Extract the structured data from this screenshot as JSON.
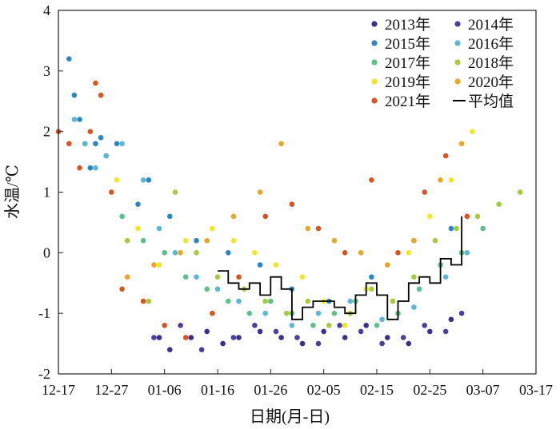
{
  "chart_data": {
    "type": "scatter",
    "title": "",
    "xlabel": "日期(月-日)",
    "ylabel": "水温/℃",
    "xlim": [
      "12-17",
      "03-17"
    ],
    "ylim": [
      -2,
      4
    ],
    "x_ticks": [
      "12-17",
      "12-27",
      "01-06",
      "01-16",
      "01-26",
      "02-05",
      "02-15",
      "02-25",
      "03-07",
      "03-17"
    ],
    "y_ticks": [
      "-2",
      "-1",
      "0",
      "1",
      "2",
      "3",
      "4"
    ],
    "grid": false,
    "legend_position": "top-right",
    "series": [
      {
        "name": "2013年",
        "color": "#3a2f8e",
        "x": [
          "01-05",
          "01-07",
          "01-11",
          "01-14",
          "01-17",
          "01-20",
          "01-24",
          "01-28",
          "02-01",
          "02-05",
          "02-09",
          "02-13",
          "02-17",
          "02-21",
          "02-25",
          "03-01"
        ],
        "y": [
          -1.4,
          -1.6,
          -1.4,
          -1.3,
          -1.5,
          -1.4,
          -1.3,
          -1.4,
          -1.5,
          -1.3,
          -1.4,
          -1.2,
          -1.4,
          -1.5,
          -1.3,
          -1.1
        ]
      },
      {
        "name": "2014年",
        "color": "#4a3f9e",
        "x": [
          "01-04",
          "01-09",
          "01-13",
          "01-19",
          "01-23",
          "01-27",
          "01-31",
          "02-04",
          "02-08",
          "02-12",
          "02-16",
          "02-20",
          "02-24",
          "02-28",
          "03-03"
        ],
        "y": [
          -1.4,
          -1.2,
          -1.6,
          -1.4,
          -1.2,
          -1.3,
          -1.4,
          -1.5,
          -1.2,
          -1.3,
          -1.5,
          -1.4,
          -1.2,
          -1.3,
          -1.0
        ]
      },
      {
        "name": "2015年",
        "color": "#2d86c4",
        "x": [
          "12-19",
          "12-20",
          "12-21",
          "12-22",
          "12-23",
          "12-24",
          "12-25",
          "12-26",
          "12-28",
          "01-01",
          "01-03",
          "01-07",
          "01-12",
          "01-18",
          "01-24",
          "01-30",
          "02-06",
          "02-14",
          "02-22",
          "03-01"
        ],
        "y": [
          3.2,
          2.6,
          2.2,
          1.8,
          1.4,
          1.8,
          1.9,
          1.6,
          1.8,
          0.8,
          1.2,
          0.6,
          0.2,
          0.0,
          -0.2,
          -0.6,
          -0.8,
          -0.4,
          0.2,
          0.4
        ]
      },
      {
        "name": "2016年",
        "color": "#5ab8d6",
        "x": [
          "12-20",
          "12-22",
          "12-24",
          "12-26",
          "12-29",
          "01-02",
          "01-05",
          "01-08",
          "01-12",
          "01-16",
          "01-20",
          "01-25",
          "01-30",
          "02-04",
          "02-10",
          "02-16",
          "02-22",
          "02-28",
          "03-04"
        ],
        "y": [
          2.2,
          1.8,
          1.4,
          1.6,
          1.8,
          1.2,
          0.4,
          0.0,
          -0.4,
          -0.6,
          -0.8,
          -1.0,
          -1.2,
          -1.0,
          -0.8,
          -1.1,
          -0.9,
          -0.4,
          0.0
        ]
      },
      {
        "name": "2017年",
        "color": "#5cc08a",
        "x": [
          "12-29",
          "01-02",
          "01-06",
          "01-10",
          "01-14",
          "01-18",
          "01-22",
          "01-26",
          "01-30",
          "02-03",
          "02-07",
          "02-11",
          "02-15",
          "02-19",
          "02-23",
          "02-27",
          "03-03",
          "03-07"
        ],
        "y": [
          0.6,
          0.2,
          0.0,
          -0.4,
          -0.6,
          -0.8,
          -1.0,
          -0.8,
          -1.0,
          -1.2,
          -1.0,
          -0.8,
          -1.2,
          -1.0,
          -0.6,
          -0.2,
          0.0,
          0.4
        ]
      },
      {
        "name": "2018年",
        "color": "#a4cc3c",
        "x": [
          "12-30",
          "01-03",
          "01-08",
          "01-12",
          "01-16",
          "01-21",
          "01-25",
          "01-29",
          "02-02",
          "02-06",
          "02-10",
          "02-14",
          "02-18",
          "02-22",
          "02-26",
          "03-02",
          "03-06",
          "03-10",
          "03-14"
        ],
        "y": [
          0.2,
          -0.8,
          1.0,
          0.0,
          -0.4,
          -0.6,
          -0.8,
          -1.0,
          -0.8,
          -1.2,
          -1.0,
          -0.6,
          -0.8,
          -0.4,
          0.2,
          0.4,
          0.6,
          0.8,
          1.0
        ]
      },
      {
        "name": "2019年",
        "color": "#f2e627",
        "x": [
          "12-28",
          "01-01",
          "01-05",
          "01-10",
          "01-15",
          "01-19",
          "01-23",
          "01-27",
          "02-01",
          "02-05",
          "02-09",
          "02-13",
          "02-17",
          "02-21",
          "02-25",
          "03-01",
          "03-05"
        ],
        "y": [
          1.2,
          0.4,
          -0.2,
          0.2,
          0.4,
          0.2,
          0.0,
          -0.2,
          -0.4,
          -0.8,
          -1.2,
          -0.6,
          -0.2,
          0.0,
          0.6,
          1.2,
          2.0
        ]
      },
      {
        "name": "2020年",
        "color": "#e8a825",
        "x": [
          "12-30",
          "01-04",
          "01-09",
          "01-14",
          "01-19",
          "01-24",
          "01-28",
          "02-02",
          "02-07",
          "02-12",
          "02-17",
          "02-22",
          "02-27",
          "03-03"
        ],
        "y": [
          -0.4,
          -0.2,
          0.0,
          0.2,
          0.6,
          1.0,
          1.8,
          0.4,
          0.2,
          0.0,
          -0.2,
          0.2,
          1.2,
          1.8
        ]
      },
      {
        "name": "2021年",
        "color": "#d9541e",
        "x": [
          "12-17",
          "12-19",
          "12-21",
          "12-23",
          "12-24",
          "12-25",
          "12-27",
          "12-29",
          "01-02",
          "01-06",
          "01-10",
          "01-15",
          "01-20",
          "01-25",
          "01-30",
          "02-04",
          "02-09",
          "02-14",
          "02-19",
          "02-24",
          "02-28",
          "03-04"
        ],
        "y": [
          2.0,
          1.8,
          1.4,
          2.0,
          2.8,
          2.6,
          1.0,
          -0.6,
          -0.8,
          -1.2,
          -1.4,
          -1.0,
          -0.4,
          0.6,
          0.8,
          0.4,
          0.0,
          1.2,
          0.0,
          1.0,
          1.6,
          0.6
        ]
      },
      {
        "name": "平均值",
        "color": "#000000",
        "x": [
          "01-16",
          "01-18",
          "01-20",
          "01-22",
          "01-24",
          "01-26",
          "01-28",
          "01-30",
          "02-01",
          "02-03",
          "02-05",
          "02-07",
          "02-09",
          "02-11",
          "02-13",
          "02-15",
          "02-17",
          "02-19",
          "02-21",
          "02-23",
          "02-25",
          "02-27",
          "03-01",
          "03-03"
        ],
        "y": [
          -0.3,
          -0.5,
          -0.6,
          -0.5,
          -0.7,
          -0.4,
          -0.6,
          -1.1,
          -0.9,
          -0.8,
          -0.8,
          -0.9,
          -1.0,
          -0.7,
          -0.5,
          -0.7,
          -1.1,
          -0.8,
          -0.5,
          -0.4,
          -0.5,
          -0.1,
          -0.2,
          0.6
        ]
      }
    ]
  }
}
